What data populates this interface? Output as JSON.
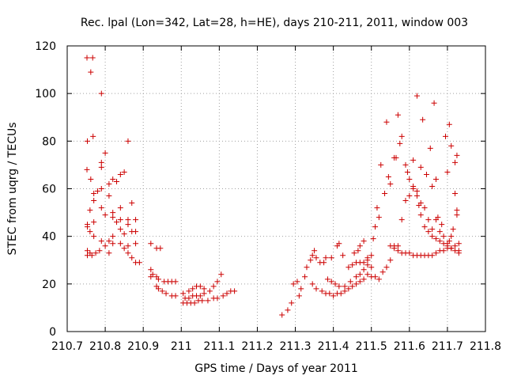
{
  "chart_data": {
    "type": "scatter",
    "title": "Rec. lpal (Lon=342, Lat=28, h=HE), days 210-211, 2011, window 003",
    "xlabel": "GPS time / Days of year 2011",
    "ylabel": "STEC from uqrg / TECUs",
    "xlim": [
      210.7,
      211.8
    ],
    "ylim": [
      0,
      120
    ],
    "xticks": [
      210.7,
      210.8,
      210.9,
      211,
      211.1,
      211.2,
      211.3,
      211.4,
      211.5,
      211.6,
      211.7,
      211.8
    ],
    "xtick_labels": [
      "210.7",
      "210.8",
      "210.9",
      "211",
      "211.1",
      "211.2",
      "211.3",
      "211.4",
      "211.5",
      "211.6",
      "211.7",
      "211.8"
    ],
    "yticks": [
      0,
      20,
      40,
      60,
      80,
      100,
      120
    ],
    "ytick_labels": [
      "0",
      "20",
      "40",
      "60",
      "80",
      "100",
      "120"
    ],
    "grid": true,
    "marker": "+",
    "color": "#cc0000",
    "series": [
      {
        "name": "",
        "points": [
          [
            210.752,
            115
          ],
          [
            210.767,
            115
          ],
          [
            210.762,
            109
          ],
          [
            210.79,
            100
          ],
          [
            210.768,
            82
          ],
          [
            210.753,
            80
          ],
          [
            210.86,
            80
          ],
          [
            210.8,
            75
          ],
          [
            210.79,
            71
          ],
          [
            210.79,
            69
          ],
          [
            210.752,
            68
          ],
          [
            210.85,
            67
          ],
          [
            210.84,
            66
          ],
          [
            210.82,
            64
          ],
          [
            210.762,
            64
          ],
          [
            210.83,
            63
          ],
          [
            210.81,
            62
          ],
          [
            210.79,
            60
          ],
          [
            210.78,
            59
          ],
          [
            210.77,
            58
          ],
          [
            210.81,
            57
          ],
          [
            210.77,
            55
          ],
          [
            210.87,
            54
          ],
          [
            210.79,
            52
          ],
          [
            210.84,
            52
          ],
          [
            210.76,
            51
          ],
          [
            210.82,
            50
          ],
          [
            210.8,
            49
          ],
          [
            210.82,
            48
          ],
          [
            210.84,
            47
          ],
          [
            210.86,
            47
          ],
          [
            210.88,
            47
          ],
          [
            210.77,
            46
          ],
          [
            210.83,
            46
          ],
          [
            210.86,
            45
          ],
          [
            210.753,
            45
          ],
          [
            210.753,
            44
          ],
          [
            210.84,
            43
          ],
          [
            210.87,
            42
          ],
          [
            210.88,
            42
          ],
          [
            210.76,
            42
          ],
          [
            210.77,
            40
          ],
          [
            210.82,
            40
          ],
          [
            210.85,
            41
          ],
          [
            210.79,
            38
          ],
          [
            210.81,
            38
          ],
          [
            210.82,
            37
          ],
          [
            210.84,
            37
          ],
          [
            210.86,
            36
          ],
          [
            210.88,
            37
          ],
          [
            210.8,
            36
          ],
          [
            210.85,
            35
          ],
          [
            210.86,
            33
          ],
          [
            210.87,
            31
          ],
          [
            210.88,
            29
          ],
          [
            210.89,
            29
          ],
          [
            210.753,
            34
          ],
          [
            210.76,
            33
          ],
          [
            210.775,
            33
          ],
          [
            210.785,
            34
          ],
          [
            210.753,
            32
          ],
          [
            210.765,
            32
          ],
          [
            210.81,
            33
          ],
          [
            210.92,
            37
          ],
          [
            210.935,
            35
          ],
          [
            210.945,
            35
          ],
          [
            210.92,
            26
          ],
          [
            210.925,
            24
          ],
          [
            210.935,
            23
          ],
          [
            210.92,
            23
          ],
          [
            210.94,
            22
          ],
          [
            210.955,
            21
          ],
          [
            210.965,
            21
          ],
          [
            210.975,
            21
          ],
          [
            210.985,
            21
          ],
          [
            210.935,
            19
          ],
          [
            210.94,
            18
          ],
          [
            210.95,
            17
          ],
          [
            210.96,
            16
          ],
          [
            210.975,
            15
          ],
          [
            210.985,
            15
          ],
          [
            211.005,
            16
          ],
          [
            211.02,
            17
          ],
          [
            211.03,
            18
          ],
          [
            211.04,
            19
          ],
          [
            211.05,
            19
          ],
          [
            211.06,
            18
          ],
          [
            211.01,
            14
          ],
          [
            211.02,
            14
          ],
          [
            211.03,
            15
          ],
          [
            211.04,
            15
          ],
          [
            211.05,
            15
          ],
          [
            211.06,
            16
          ],
          [
            211.075,
            17
          ],
          [
            211.085,
            19
          ],
          [
            211.095,
            21
          ],
          [
            211.105,
            24
          ],
          [
            211.005,
            12
          ],
          [
            211.015,
            12
          ],
          [
            211.025,
            12
          ],
          [
            211.035,
            12
          ],
          [
            211.045,
            13
          ],
          [
            211.055,
            13
          ],
          [
            211.07,
            13
          ],
          [
            211.085,
            14
          ],
          [
            211.095,
            14
          ],
          [
            211.11,
            15
          ],
          [
            211.12,
            16
          ],
          [
            211.13,
            17
          ],
          [
            211.14,
            17
          ],
          [
            211.265,
            7
          ],
          [
            211.28,
            9
          ],
          [
            211.29,
            12
          ],
          [
            211.295,
            20
          ],
          [
            211.305,
            21
          ],
          [
            211.31,
            15
          ],
          [
            211.315,
            18
          ],
          [
            211.325,
            23
          ],
          [
            211.33,
            27
          ],
          [
            211.34,
            30
          ],
          [
            211.345,
            32
          ],
          [
            211.35,
            34
          ],
          [
            211.355,
            31
          ],
          [
            211.365,
            29
          ],
          [
            211.375,
            29
          ],
          [
            211.38,
            31
          ],
          [
            211.395,
            31
          ],
          [
            211.41,
            36
          ],
          [
            211.415,
            37
          ],
          [
            211.425,
            32
          ],
          [
            211.345,
            20
          ],
          [
            211.355,
            18
          ],
          [
            211.37,
            17
          ],
          [
            211.38,
            16
          ],
          [
            211.39,
            16
          ],
          [
            211.4,
            15
          ],
          [
            211.41,
            16
          ],
          [
            211.42,
            16
          ],
          [
            211.43,
            17
          ],
          [
            211.44,
            18
          ],
          [
            211.45,
            19
          ],
          [
            211.46,
            20
          ],
          [
            211.47,
            21
          ],
          [
            211.48,
            22
          ],
          [
            211.49,
            24
          ],
          [
            211.385,
            22
          ],
          [
            211.395,
            21
          ],
          [
            211.405,
            20
          ],
          [
            211.415,
            19
          ],
          [
            211.43,
            19
          ],
          [
            211.445,
            21
          ],
          [
            211.46,
            23
          ],
          [
            211.47,
            24
          ],
          [
            211.48,
            26
          ],
          [
            211.49,
            28
          ],
          [
            211.44,
            27
          ],
          [
            211.45,
            28
          ],
          [
            211.46,
            29
          ],
          [
            211.47,
            29
          ],
          [
            211.48,
            29
          ],
          [
            211.49,
            31
          ],
          [
            211.5,
            32
          ],
          [
            211.455,
            33
          ],
          [
            211.465,
            34
          ],
          [
            211.47,
            36
          ],
          [
            211.48,
            38
          ],
          [
            211.49,
            30
          ],
          [
            211.5,
            27
          ],
          [
            211.505,
            39
          ],
          [
            211.51,
            44
          ],
          [
            211.515,
            52
          ],
          [
            211.52,
            48
          ],
          [
            211.525,
            70
          ],
          [
            211.535,
            58
          ],
          [
            211.54,
            88
          ],
          [
            211.545,
            65
          ],
          [
            211.55,
            62
          ],
          [
            211.56,
            73
          ],
          [
            211.565,
            73
          ],
          [
            211.57,
            91
          ],
          [
            211.575,
            79
          ],
          [
            211.58,
            82
          ],
          [
            211.59,
            70
          ],
          [
            211.595,
            67
          ],
          [
            211.6,
            57
          ],
          [
            211.61,
            72
          ],
          [
            211.62,
            99
          ],
          [
            211.625,
            53
          ],
          [
            211.63,
            69
          ],
          [
            211.635,
            89
          ],
          [
            211.645,
            66
          ],
          [
            211.655,
            77
          ],
          [
            211.66,
            61
          ],
          [
            211.665,
            96
          ],
          [
            211.67,
            64
          ],
          [
            211.675,
            48
          ],
          [
            211.685,
            45
          ],
          [
            211.695,
            82
          ],
          [
            211.7,
            67
          ],
          [
            211.705,
            87
          ],
          [
            211.71,
            78
          ],
          [
            211.72,
            71
          ],
          [
            211.725,
            74
          ],
          [
            211.725,
            51
          ],
          [
            211.725,
            49
          ],
          [
            211.72,
            58
          ],
          [
            211.715,
            43
          ],
          [
            211.71,
            40
          ],
          [
            211.705,
            38
          ],
          [
            211.7,
            37
          ],
          [
            211.69,
            40
          ],
          [
            211.68,
            42
          ],
          [
            211.67,
            47
          ],
          [
            211.66,
            43
          ],
          [
            211.65,
            47
          ],
          [
            211.64,
            52
          ],
          [
            211.63,
            54
          ],
          [
            211.62,
            59
          ],
          [
            211.61,
            61
          ],
          [
            211.6,
            64
          ],
          [
            211.59,
            55
          ],
          [
            211.58,
            47
          ],
          [
            211.57,
            36
          ],
          [
            211.56,
            35
          ],
          [
            211.55,
            30
          ],
          [
            211.54,
            27
          ],
          [
            211.53,
            25
          ],
          [
            211.52,
            22
          ],
          [
            211.51,
            23
          ],
          [
            211.5,
            23
          ],
          [
            211.55,
            36
          ],
          [
            211.56,
            36
          ],
          [
            211.57,
            34
          ],
          [
            211.58,
            33
          ],
          [
            211.59,
            33
          ],
          [
            211.6,
            33
          ],
          [
            211.61,
            32
          ],
          [
            211.62,
            32
          ],
          [
            211.63,
            32
          ],
          [
            211.64,
            32
          ],
          [
            211.65,
            32
          ],
          [
            211.66,
            32
          ],
          [
            211.67,
            33
          ],
          [
            211.68,
            34
          ],
          [
            211.69,
            34
          ],
          [
            211.7,
            35
          ],
          [
            211.71,
            35
          ],
          [
            211.72,
            36
          ],
          [
            211.73,
            37
          ],
          [
            211.73,
            34
          ],
          [
            211.73,
            33
          ],
          [
            211.72,
            34
          ],
          [
            211.71,
            35
          ],
          [
            211.7,
            36
          ],
          [
            211.69,
            37
          ],
          [
            211.68,
            38
          ],
          [
            211.67,
            39
          ],
          [
            211.66,
            40
          ],
          [
            211.65,
            42
          ],
          [
            211.64,
            44
          ],
          [
            211.63,
            49
          ],
          [
            211.62,
            57
          ],
          [
            211.61,
            60
          ]
        ]
      }
    ]
  }
}
